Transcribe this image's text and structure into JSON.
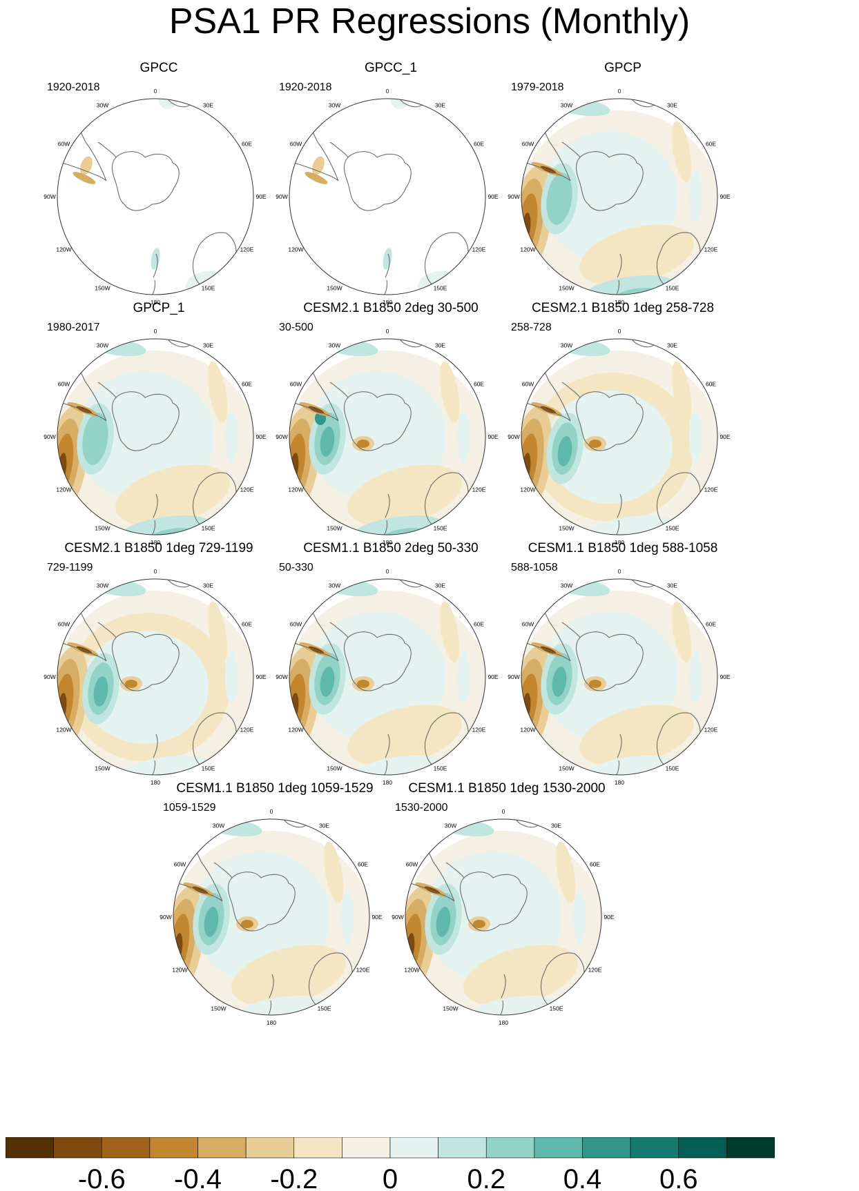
{
  "title": "PSA1 PR Regressions (Monthly)",
  "longitude_labels": [
    "0",
    "30E",
    "60E",
    "90E",
    "120E",
    "150E",
    "180",
    "150W",
    "120W",
    "90W",
    "60W",
    "30W"
  ],
  "panels": [
    {
      "title": "GPCC",
      "period": "1920-2018",
      "style": "obs_land"
    },
    {
      "title": "GPCC_1",
      "period": "1920-2018",
      "style": "obs_land"
    },
    {
      "title": "GPCP",
      "period": "1979-2018",
      "style": "obs"
    },
    {
      "title": "GPCP_1",
      "period": "1980-2017",
      "style": "obs"
    },
    {
      "title": "CESM2.1 B1850 2deg 30-500",
      "period": "30-500",
      "style": "model_strong"
    },
    {
      "title": "CESM2.1 B1850 1deg 258-728",
      "period": "258-728",
      "style": "model_ring"
    },
    {
      "title": "CESM2.1 B1850 1deg 729-1199",
      "period": "729-1199",
      "style": "model_ring"
    },
    {
      "title": "CESM1.1 B1850 2deg 50-330",
      "period": "50-330",
      "style": "model"
    },
    {
      "title": "CESM1.1 B1850 1deg 588-1058",
      "period": "588-1058",
      "style": "model"
    },
    {
      "title": "CESM1.1 B1850 1deg 1059-1529",
      "period": "1059-1529",
      "style": "model"
    },
    {
      "title": "CESM1.1 B1850 1deg 1530-2000",
      "period": "1530-2000",
      "style": "model"
    }
  ],
  "colorbar": {
    "colors": [
      "#543005",
      "#7e4a10",
      "#a0631a",
      "#c2872e",
      "#d6ad62",
      "#e8cd96",
      "#f5e6c3",
      "#f5f0e4",
      "#e4f2f0",
      "#c0e6df",
      "#93d3c7",
      "#5fb8ac",
      "#32958a",
      "#157a70",
      "#035e53",
      "#003c30"
    ],
    "ticks": [
      "-0.6",
      "-0.4",
      "-0.2",
      "0",
      "0.2",
      "0.4",
      "0.6"
    ]
  }
}
